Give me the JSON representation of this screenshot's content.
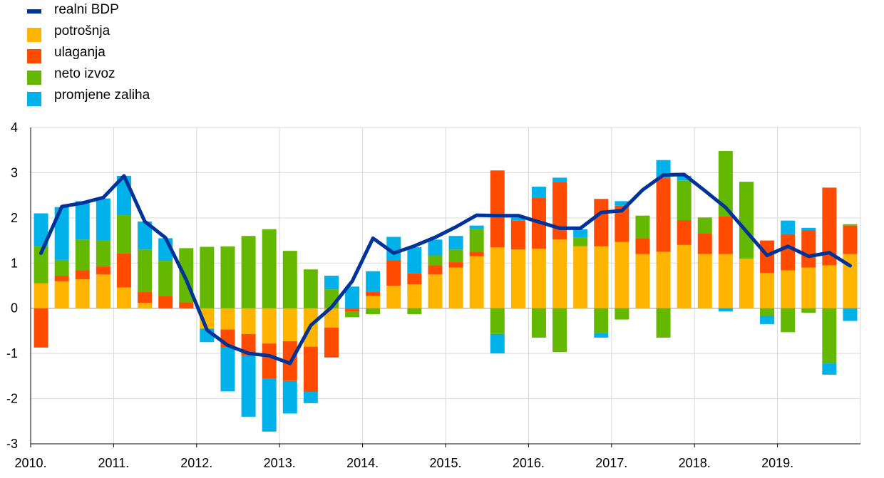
{
  "colors": {
    "realni_bdp": "#003399",
    "potrosnja": "#FFB400",
    "ulaganja": "#FF4B00",
    "neto_izvoz": "#65B800",
    "promjene_zaliha": "#00B1EA",
    "grid": "#d9d9d9",
    "axis": "#000000"
  },
  "legend": [
    {
      "label": "realni BDP",
      "key": "realni_bdp",
      "kind": "line"
    },
    {
      "label": "potrošnja",
      "key": "potrosnja",
      "kind": "box"
    },
    {
      "label": "ulaganja",
      "key": "ulaganja",
      "kind": "box"
    },
    {
      "label": "neto izvoz",
      "key": "neto_izvoz",
      "kind": "box"
    },
    {
      "label": "promjene zaliha",
      "key": "promjene_zaliha",
      "kind": "box"
    }
  ],
  "chart_data": {
    "type": "bar",
    "stacked": true,
    "ylim": [
      -3,
      4
    ],
    "yticks": [
      4,
      3,
      2,
      1,
      0,
      -1,
      -2,
      -3
    ],
    "grid": true,
    "legend_position": "top-left",
    "x_range": [
      "2010 Q1",
      "2019 Q4"
    ],
    "year_labels": [
      "2010.",
      "2011.",
      "2012.",
      "2013.",
      "2014.",
      "2015.",
      "2016.",
      "2017.",
      "2018.",
      "2019."
    ],
    "categories": [
      "2010 Q1",
      "2010 Q2",
      "2010 Q3",
      "2010 Q4",
      "2011 Q1",
      "2011 Q2",
      "2011 Q3",
      "2011 Q4",
      "2012 Q1",
      "2012 Q2",
      "2012 Q3",
      "2012 Q4",
      "2013 Q1",
      "2013 Q2",
      "2013 Q3",
      "2013 Q4",
      "2014 Q1",
      "2014 Q2",
      "2014 Q3",
      "2014 Q4",
      "2015 Q1",
      "2015 Q2",
      "2015 Q3",
      "2015 Q4",
      "2016 Q1",
      "2016 Q2",
      "2016 Q3",
      "2016 Q4",
      "2017 Q1",
      "2017 Q2",
      "2017 Q3",
      "2017 Q4",
      "2018 Q1",
      "2018 Q2",
      "2018 Q3",
      "2018 Q4",
      "2019 Q1",
      "2019 Q2",
      "2019 Q3",
      "2019 Q4"
    ],
    "series": [
      {
        "name": "potrošnja",
        "key": "potrosnja",
        "values": [
          0.55,
          0.6,
          0.64,
          0.75,
          0.46,
          0.12,
          0,
          0,
          -0.45,
          -0.47,
          -0.57,
          -0.78,
          -0.73,
          -0.85,
          -0.43,
          0.0,
          0.27,
          0.5,
          0.53,
          0.75,
          0.9,
          1.15,
          1.35,
          1.3,
          1.32,
          1.52,
          1.37,
          1.37,
          1.47,
          1.2,
          1.25,
          1.4,
          1.2,
          1.2,
          1.1,
          0.78,
          0.84,
          0.9,
          0.95,
          1.2
        ]
      },
      {
        "name": "ulaganja",
        "key": "ulaganja",
        "values": [
          -0.87,
          0.12,
          0.2,
          0.18,
          0.75,
          0.25,
          0.27,
          0.13,
          0,
          -0.4,
          -0.48,
          -0.77,
          -0.88,
          -1.0,
          -0.66,
          -0.08,
          0.1,
          0.56,
          0.24,
          0.2,
          0.12,
          0.1,
          1.7,
          0.64,
          1.12,
          1.28,
          0.0,
          1.05,
          0.8,
          0.35,
          1.63,
          0.55,
          0.46,
          0.83,
          0,
          0.72,
          0.8,
          0.83,
          1.72,
          0.63
        ]
      },
      {
        "name": "neto izvoz",
        "key": "neto_izvoz",
        "values": [
          0.82,
          0.35,
          0.68,
          0.57,
          0.85,
          0.93,
          0.78,
          1.2,
          1.36,
          1.37,
          1.6,
          1.75,
          1.27,
          0.86,
          0.42,
          -0.12,
          -0.13,
          0,
          -0.13,
          0.22,
          0.28,
          0.5,
          -0.57,
          0,
          -0.65,
          -0.97,
          0.2,
          -0.55,
          -0.25,
          0.5,
          -0.65,
          0.88,
          0.35,
          1.45,
          1.7,
          -0.17,
          -0.53,
          -0.1,
          -1.22,
          0.03
        ]
      },
      {
        "name": "promjene zaliha",
        "key": "promjene_zaliha",
        "values": [
          0.73,
          1.17,
          0.85,
          0.93,
          0.87,
          0.62,
          0.5,
          0,
          -0.3,
          -0.97,
          -1.35,
          -1.18,
          -0.72,
          -0.25,
          0.3,
          0.48,
          0.45,
          0.52,
          0.58,
          0.35,
          0.3,
          0.08,
          -0.43,
          0.07,
          0.25,
          0.09,
          0.18,
          -0.1,
          0.1,
          0,
          0.4,
          0.1,
          0,
          -0.07,
          0,
          -0.18,
          0.3,
          0.05,
          -0.25,
          -0.28
        ]
      },
      {
        "name": "realni BDP",
        "key": "realni_bdp",
        "kind": "line",
        "values": [
          1.22,
          2.25,
          2.33,
          2.45,
          2.93,
          1.92,
          1.56,
          0.63,
          -0.48,
          -0.82,
          -1.0,
          -1.05,
          -1.22,
          -0.38,
          0.02,
          0.6,
          1.55,
          1.22,
          1.38,
          1.57,
          1.8,
          2.06,
          2.05,
          2.05,
          1.91,
          1.77,
          1.77,
          2.12,
          2.16,
          2.62,
          2.95,
          2.96,
          2.6,
          2.23,
          1.7,
          1.17,
          1.37,
          1.15,
          1.23,
          0.94
        ]
      }
    ]
  }
}
